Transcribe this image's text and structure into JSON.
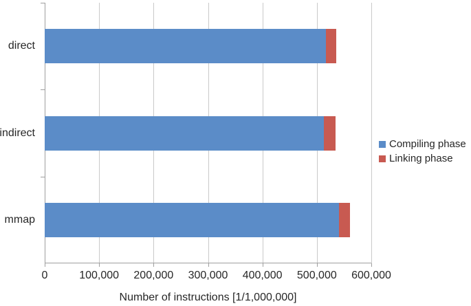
{
  "chart_data": {
    "type": "bar",
    "orientation": "horizontal",
    "stacked": true,
    "categories": [
      "direct",
      "indirect",
      "mmap"
    ],
    "series": [
      {
        "name": "Compiling phase",
        "color": "#5B8CC8",
        "values": [
          516000,
          513000,
          540000
        ]
      },
      {
        "name": "Linking phase",
        "color": "#C85A51",
        "values": [
          20000,
          21000,
          21000
        ]
      }
    ],
    "totals": [
      536000,
      534000,
      561000
    ],
    "title": "",
    "xlabel": "Number of instructions [1/1,000,000]",
    "ylabel": "",
    "xlim": [
      0,
      600000
    ],
    "xtick_step": 100000,
    "xtick_labels": [
      "0",
      "100,000",
      "200,000",
      "300,000",
      "400,000",
      "500,000",
      "600,000"
    ],
    "grid": true,
    "legend_position": "right"
  },
  "colors": {
    "compiling": "#5B8CC8",
    "linking": "#C85A51",
    "gridline": "#C9C9C9",
    "axis": "#9E9E9E",
    "text": "#262626",
    "background": "#FFFFFF"
  }
}
